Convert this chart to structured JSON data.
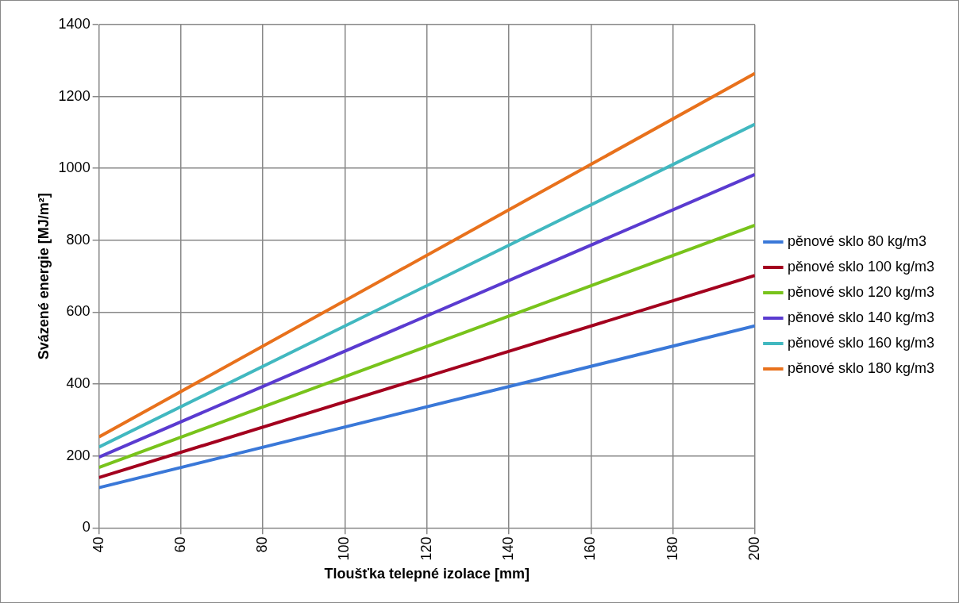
{
  "chart_data": {
    "type": "line",
    "xlabel": "Tloušťka telepné izolace [mm]",
    "ylabel": "Svázené energie [MJ/m²]",
    "x": [
      40,
      200
    ],
    "series": [
      {
        "name": "pěnové sklo 80 kg/m3",
        "color": "#3a78d8",
        "values": [
          112,
          562
        ]
      },
      {
        "name": "pěnové sklo 100 kg/m3",
        "color": "#a3001e",
        "values": [
          140,
          702
        ]
      },
      {
        "name": "pěnové sklo 120 kg/m3",
        "color": "#78c31b",
        "values": [
          168,
          842
        ]
      },
      {
        "name": "pěnové sklo 140 kg/m3",
        "color": "#5a3bd0",
        "values": [
          197,
          983
        ]
      },
      {
        "name": "pěnové sklo 160 kg/m3",
        "color": "#41b8c0",
        "values": [
          225,
          1123
        ]
      },
      {
        "name": "pěnové sklo 180 kg/m3",
        "color": "#e8711c",
        "values": [
          253,
          1264
        ]
      }
    ],
    "xlim": [
      40,
      200
    ],
    "xticks": [
      40,
      60,
      80,
      100,
      120,
      140,
      160,
      180,
      200
    ],
    "ylim": [
      0,
      1400
    ],
    "yticks": [
      0,
      200,
      400,
      600,
      800,
      1000,
      1200,
      1400
    ],
    "grid": true,
    "legend": "right"
  }
}
